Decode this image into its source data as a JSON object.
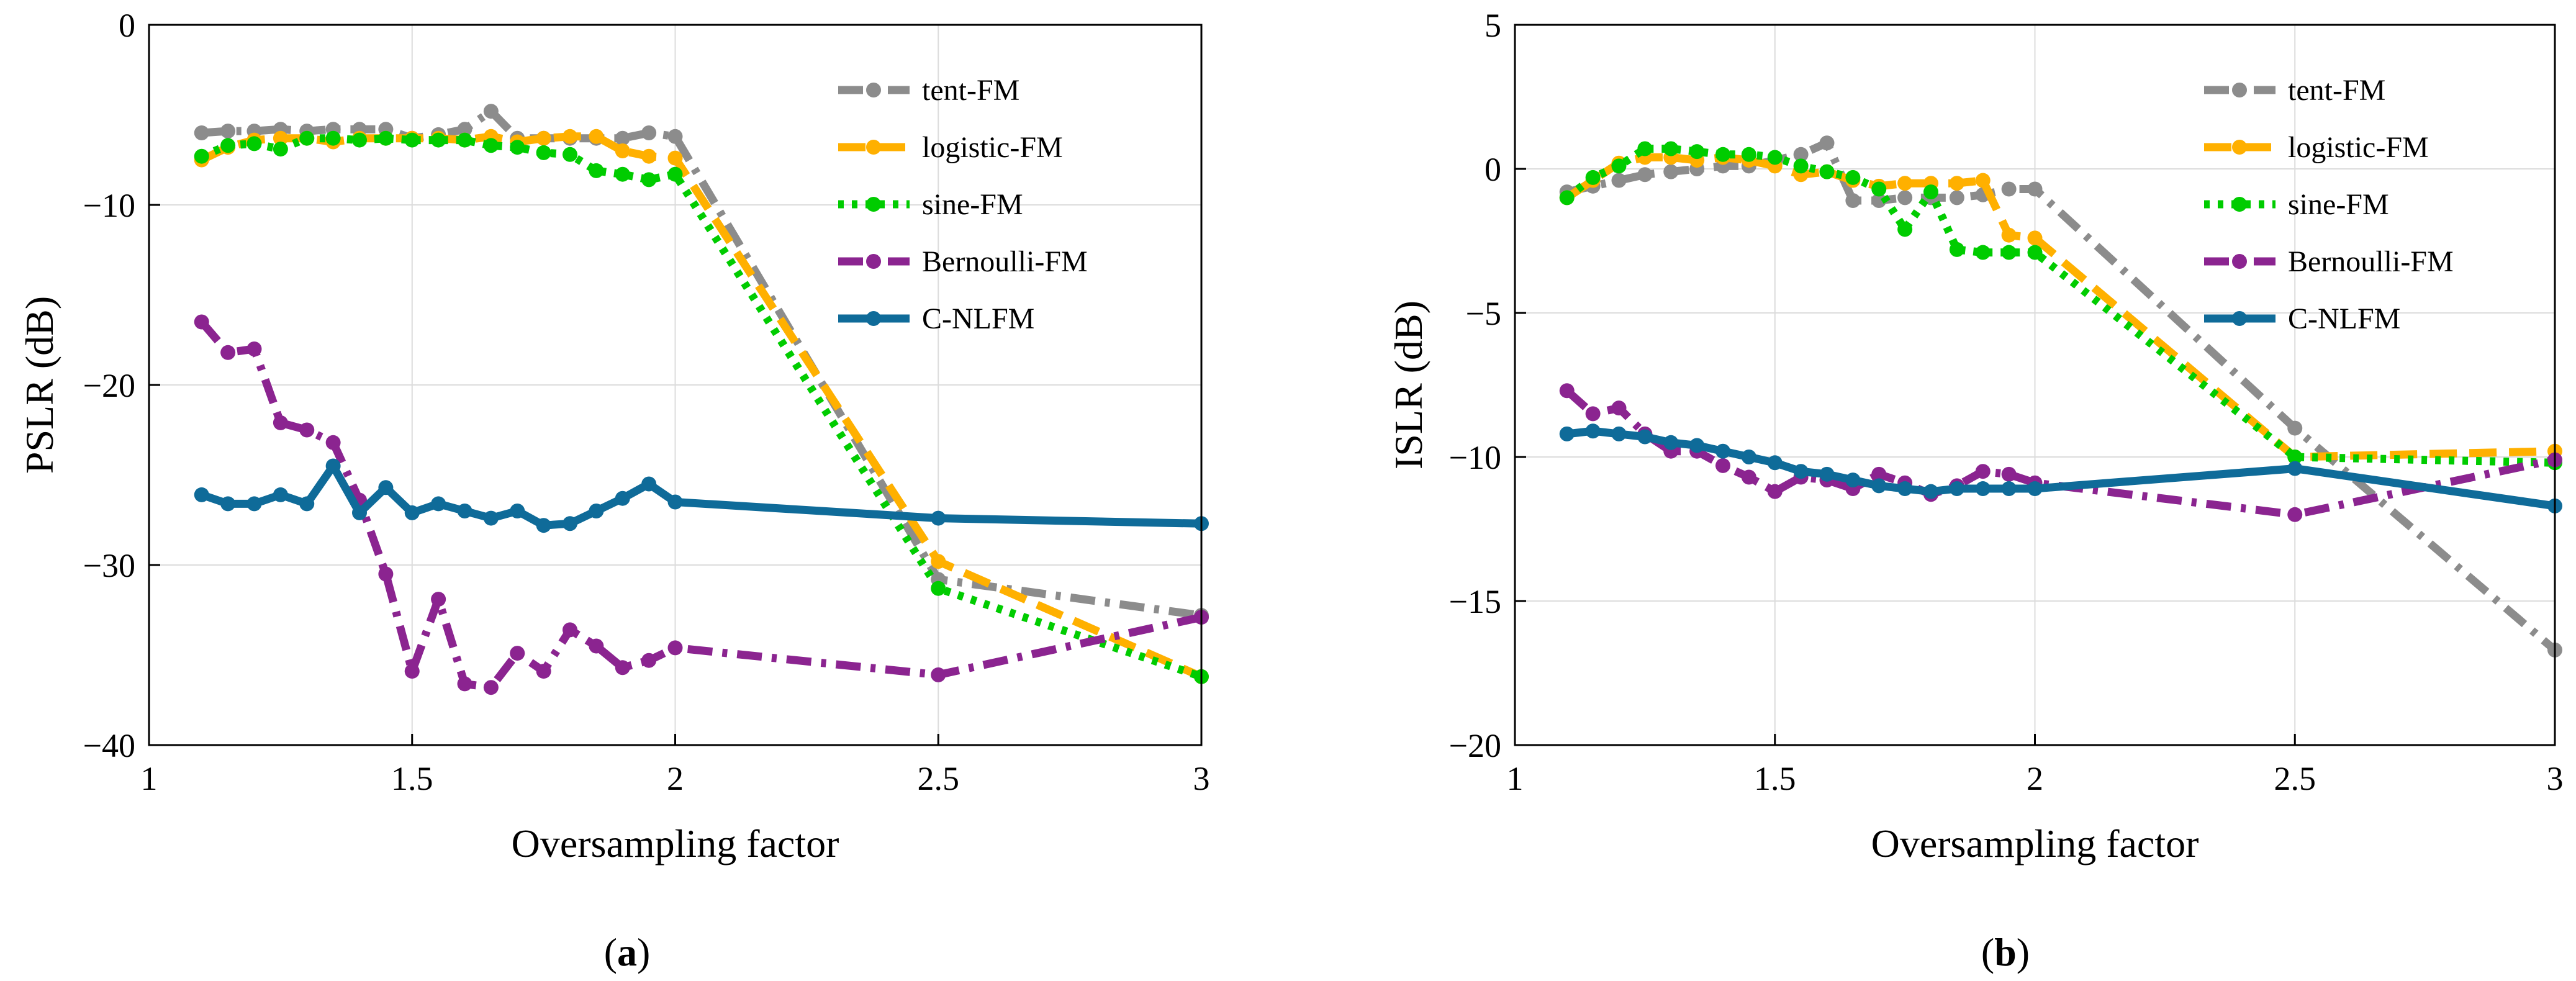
{
  "chart_data": [
    {
      "type": "line",
      "panel_label": "a",
      "xlabel": "Oversampling factor",
      "ylabel": "PSLR (dB)",
      "xlim": [
        1,
        3
      ],
      "ylim": [
        -40,
        0
      ],
      "xticks": [
        1,
        1.5,
        2,
        2.5,
        3
      ],
      "xtick_labels": [
        "1",
        "1.5",
        "2",
        "2.5",
        "3"
      ],
      "yticks": [
        -40,
        -30,
        -20,
        -10,
        0
      ],
      "ytick_labels": [
        "−40",
        "−30",
        "−20",
        "−10",
        "0"
      ],
      "grid": true,
      "legend_position": "top-right",
      "series": [
        {
          "name": "tent-FM",
          "color": "#8c8c8c",
          "dash": "dashdot",
          "x": [
            1.1,
            1.15,
            1.2,
            1.25,
            1.3,
            1.35,
            1.4,
            1.45,
            1.5,
            1.55,
            1.6,
            1.65,
            1.7,
            1.75,
            1.8,
            1.85,
            1.9,
            1.95,
            2.0,
            2.5,
            3.0
          ],
          "y": [
            -6.0,
            -5.9,
            -5.9,
            -5.8,
            -5.9,
            -5.8,
            -5.8,
            -5.8,
            -6.3,
            -6.1,
            -5.8,
            -4.8,
            -6.3,
            -6.3,
            -6.3,
            -6.3,
            -6.3,
            -6.0,
            -6.2,
            -30.8,
            -32.8
          ]
        },
        {
          "name": "logistic-FM",
          "color": "#ffb000",
          "dash": "dash",
          "x": [
            1.1,
            1.15,
            1.2,
            1.25,
            1.3,
            1.35,
            1.4,
            1.45,
            1.5,
            1.55,
            1.6,
            1.65,
            1.7,
            1.75,
            1.8,
            1.85,
            1.9,
            1.95,
            2.0,
            2.5,
            3.0
          ],
          "y": [
            -7.5,
            -6.8,
            -6.4,
            -6.3,
            -6.3,
            -6.5,
            -6.3,
            -6.3,
            -6.3,
            -6.3,
            -6.4,
            -6.2,
            -6.5,
            -6.3,
            -6.2,
            -6.2,
            -7.0,
            -7.3,
            -7.4,
            -29.8,
            -36.2
          ]
        },
        {
          "name": "sine-FM",
          "color": "#00cc00",
          "dash": "dot",
          "x": [
            1.1,
            1.15,
            1.2,
            1.25,
            1.3,
            1.35,
            1.4,
            1.45,
            1.5,
            1.55,
            1.6,
            1.65,
            1.7,
            1.75,
            1.8,
            1.85,
            1.9,
            1.95,
            2.0,
            2.5,
            3.0
          ],
          "y": [
            -7.3,
            -6.7,
            -6.6,
            -6.9,
            -6.3,
            -6.3,
            -6.4,
            -6.3,
            -6.4,
            -6.4,
            -6.4,
            -6.7,
            -6.8,
            -7.1,
            -7.2,
            -8.1,
            -8.3,
            -8.6,
            -8.3,
            -31.3,
            -36.2
          ]
        },
        {
          "name": "Bernoulli-FM",
          "color": "#8b2490",
          "dash": "dashdot",
          "x": [
            1.1,
            1.15,
            1.2,
            1.25,
            1.3,
            1.35,
            1.4,
            1.45,
            1.5,
            1.55,
            1.6,
            1.65,
            1.7,
            1.75,
            1.8,
            1.85,
            1.9,
            1.95,
            2.0,
            2.5,
            3.0
          ],
          "y": [
            -16.5,
            -18.2,
            -18.0,
            -22.1,
            -22.5,
            -23.2,
            -26.4,
            -30.5,
            -35.9,
            -31.9,
            -36.6,
            -36.8,
            -34.9,
            -35.9,
            -33.6,
            -34.5,
            -35.7,
            -35.3,
            -34.6,
            -36.1,
            -32.9
          ]
        },
        {
          "name": "C-NLFM",
          "color": "#0f6b99",
          "dash": "solid",
          "x": [
            1.1,
            1.15,
            1.2,
            1.25,
            1.3,
            1.35,
            1.4,
            1.45,
            1.5,
            1.55,
            1.6,
            1.65,
            1.7,
            1.75,
            1.8,
            1.85,
            1.9,
            1.95,
            2.0,
            2.5,
            3.0
          ],
          "y": [
            -26.1,
            -26.6,
            -26.6,
            -26.1,
            -26.6,
            -24.5,
            -27.1,
            -25.7,
            -27.1,
            -26.6,
            -27.0,
            -27.4,
            -27.0,
            -27.8,
            -27.7,
            -27.0,
            -26.3,
            -25.5,
            -26.5,
            -27.4,
            -27.7
          ]
        }
      ]
    },
    {
      "type": "line",
      "panel_label": "b",
      "xlabel": "Oversampling factor",
      "ylabel": "ISLR (dB)",
      "xlim": [
        1,
        3
      ],
      "ylim": [
        -20,
        5
      ],
      "xticks": [
        1,
        1.5,
        2,
        2.5,
        3
      ],
      "xtick_labels": [
        "1",
        "1.5",
        "2",
        "2.5",
        "3"
      ],
      "yticks": [
        -20,
        -15,
        -10,
        -5,
        0,
        5
      ],
      "ytick_labels": [
        "−20",
        "−15",
        "−10",
        "−5",
        "0",
        "5"
      ],
      "grid": true,
      "legend_position": "top-right",
      "series": [
        {
          "name": "tent-FM",
          "color": "#8c8c8c",
          "dash": "dashdot",
          "x": [
            1.1,
            1.15,
            1.2,
            1.25,
            1.3,
            1.35,
            1.4,
            1.45,
            1.5,
            1.55,
            1.6,
            1.65,
            1.7,
            1.75,
            1.8,
            1.85,
            1.9,
            1.95,
            2.0,
            2.5,
            3.0
          ],
          "y": [
            -0.8,
            -0.6,
            -0.4,
            -0.2,
            -0.1,
            0.0,
            0.1,
            0.1,
            0.3,
            0.5,
            0.9,
            -1.1,
            -1.1,
            -1.0,
            -1.0,
            -1.0,
            -0.9,
            -0.7,
            -0.7,
            -9.0,
            -16.7
          ]
        },
        {
          "name": "logistic-FM",
          "color": "#ffb000",
          "dash": "dash",
          "x": [
            1.1,
            1.15,
            1.2,
            1.25,
            1.3,
            1.35,
            1.4,
            1.45,
            1.5,
            1.55,
            1.6,
            1.65,
            1.7,
            1.75,
            1.8,
            1.85,
            1.9,
            1.95,
            2.0,
            2.5,
            3.0
          ],
          "y": [
            -1.0,
            -0.4,
            0.2,
            0.4,
            0.4,
            0.3,
            0.4,
            0.3,
            0.1,
            -0.2,
            -0.1,
            -0.4,
            -0.6,
            -0.5,
            -0.5,
            -0.5,
            -0.4,
            -2.3,
            -2.4,
            -10.0,
            -9.8
          ]
        },
        {
          "name": "sine-FM",
          "color": "#00cc00",
          "dash": "dot",
          "x": [
            1.1,
            1.15,
            1.2,
            1.25,
            1.3,
            1.35,
            1.4,
            1.45,
            1.5,
            1.55,
            1.6,
            1.65,
            1.7,
            1.75,
            1.8,
            1.85,
            1.9,
            1.95,
            2.0,
            2.5,
            3.0
          ],
          "y": [
            -1.0,
            -0.3,
            0.1,
            0.7,
            0.7,
            0.6,
            0.5,
            0.5,
            0.4,
            0.1,
            -0.1,
            -0.3,
            -0.7,
            -2.1,
            -0.8,
            -2.8,
            -2.9,
            -2.9,
            -2.9,
            -10.0,
            -10.2
          ]
        },
        {
          "name": "Bernoulli-FM",
          "color": "#8b2490",
          "dash": "dashdot",
          "x": [
            1.1,
            1.15,
            1.2,
            1.25,
            1.3,
            1.35,
            1.4,
            1.45,
            1.5,
            1.55,
            1.6,
            1.65,
            1.7,
            1.75,
            1.8,
            1.85,
            1.9,
            1.95,
            2.0,
            2.5,
            3.0
          ],
          "y": [
            -7.7,
            -8.5,
            -8.3,
            -9.2,
            -9.8,
            -9.8,
            -10.3,
            -10.7,
            -11.2,
            -10.7,
            -10.8,
            -11.1,
            -10.6,
            -10.9,
            -11.3,
            -11.0,
            -10.5,
            -10.6,
            -10.9,
            -12.0,
            -10.1
          ]
        },
        {
          "name": "C-NLFM",
          "color": "#0f6b99",
          "dash": "solid",
          "x": [
            1.1,
            1.15,
            1.2,
            1.25,
            1.3,
            1.35,
            1.4,
            1.45,
            1.5,
            1.55,
            1.6,
            1.65,
            1.7,
            1.75,
            1.8,
            1.85,
            1.9,
            1.95,
            2.0,
            2.5,
            3.0
          ],
          "y": [
            -9.2,
            -9.1,
            -9.2,
            -9.3,
            -9.5,
            -9.6,
            -9.8,
            -10.0,
            -10.2,
            -10.5,
            -10.6,
            -10.8,
            -11.0,
            -11.1,
            -11.2,
            -11.1,
            -11.1,
            -11.1,
            -11.1,
            -10.4,
            -11.7
          ]
        }
      ]
    }
  ]
}
